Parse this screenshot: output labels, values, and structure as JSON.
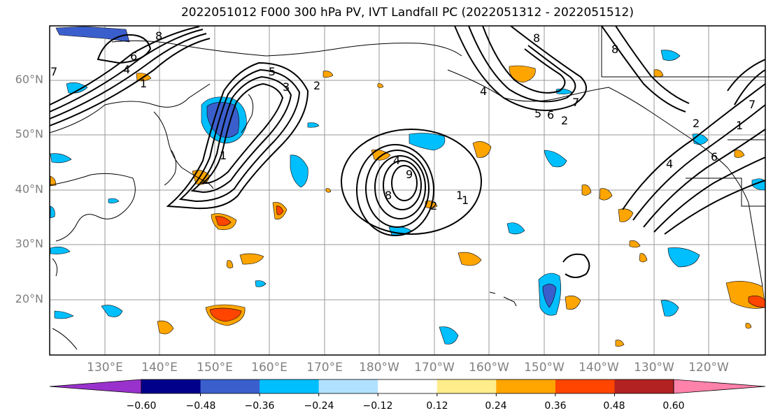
{
  "title": "2022051012 F000 300 hPa PV, IVT Landfall PC (2022051312 - 2022051512)",
  "lat_labels": [
    "60°N",
    "50°N",
    "40°N",
    "30°N",
    "20°N"
  ],
  "lon_labels": [
    "130°E",
    "140°E",
    "150°E",
    "160°E",
    "170°E",
    "180°W",
    "170°W",
    "160°W",
    "150°W",
    "140°W",
    "130°W",
    "120°W"
  ],
  "colorbar": {
    "ticks": [
      "−0.60",
      "−0.48",
      "−0.36",
      "−0.24",
      "−0.12",
      "0.12",
      "0.24",
      "0.36",
      "0.48",
      "0.60"
    ],
    "colors": [
      "#9932cc",
      "#00008b",
      "#3a5fcd",
      "#00bfff",
      "#b0e2ff",
      "#ffffff",
      "#ffec8b",
      "#ffa500",
      "#ff4500",
      "#b22222",
      "#ff82ab"
    ]
  },
  "contour_labels": [
    "8",
    "7",
    "6",
    "5",
    "4",
    "1",
    "3",
    "2",
    "1",
    "8",
    "9",
    "4",
    "1",
    "2",
    "1",
    "8",
    "7",
    "6",
    "5",
    "4",
    "2",
    "8",
    "6",
    "4",
    "2",
    "1",
    "7"
  ]
}
